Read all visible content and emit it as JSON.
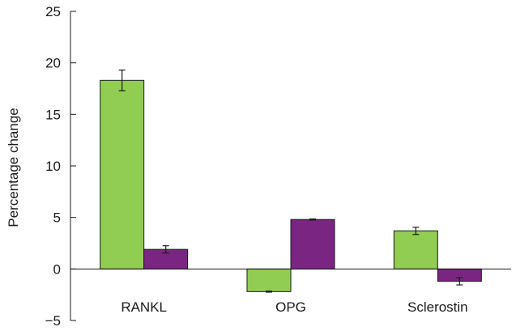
{
  "chart_data": {
    "type": "bar",
    "title": "",
    "xlabel": "",
    "ylabel": "Percentage change",
    "ylim": [
      -5,
      25
    ],
    "yticks": [
      -5,
      0,
      5,
      10,
      15,
      20,
      25
    ],
    "ytick_labels": [
      "−5",
      "0",
      "5",
      "10",
      "15",
      "20",
      "25"
    ],
    "categories": [
      "RANKL",
      "OPG",
      "Sclerostin"
    ],
    "series": [
      {
        "color": "#92cd53",
        "values": [
          18.3,
          -2.2,
          3.7
        ],
        "errors": [
          1.0,
          0.05,
          0.35
        ]
      },
      {
        "color": "#7b2582",
        "values": [
          1.9,
          4.8,
          -1.2
        ],
        "errors": [
          0.35,
          0.05,
          0.35
        ]
      }
    ],
    "legend": "none",
    "grid": false
  }
}
